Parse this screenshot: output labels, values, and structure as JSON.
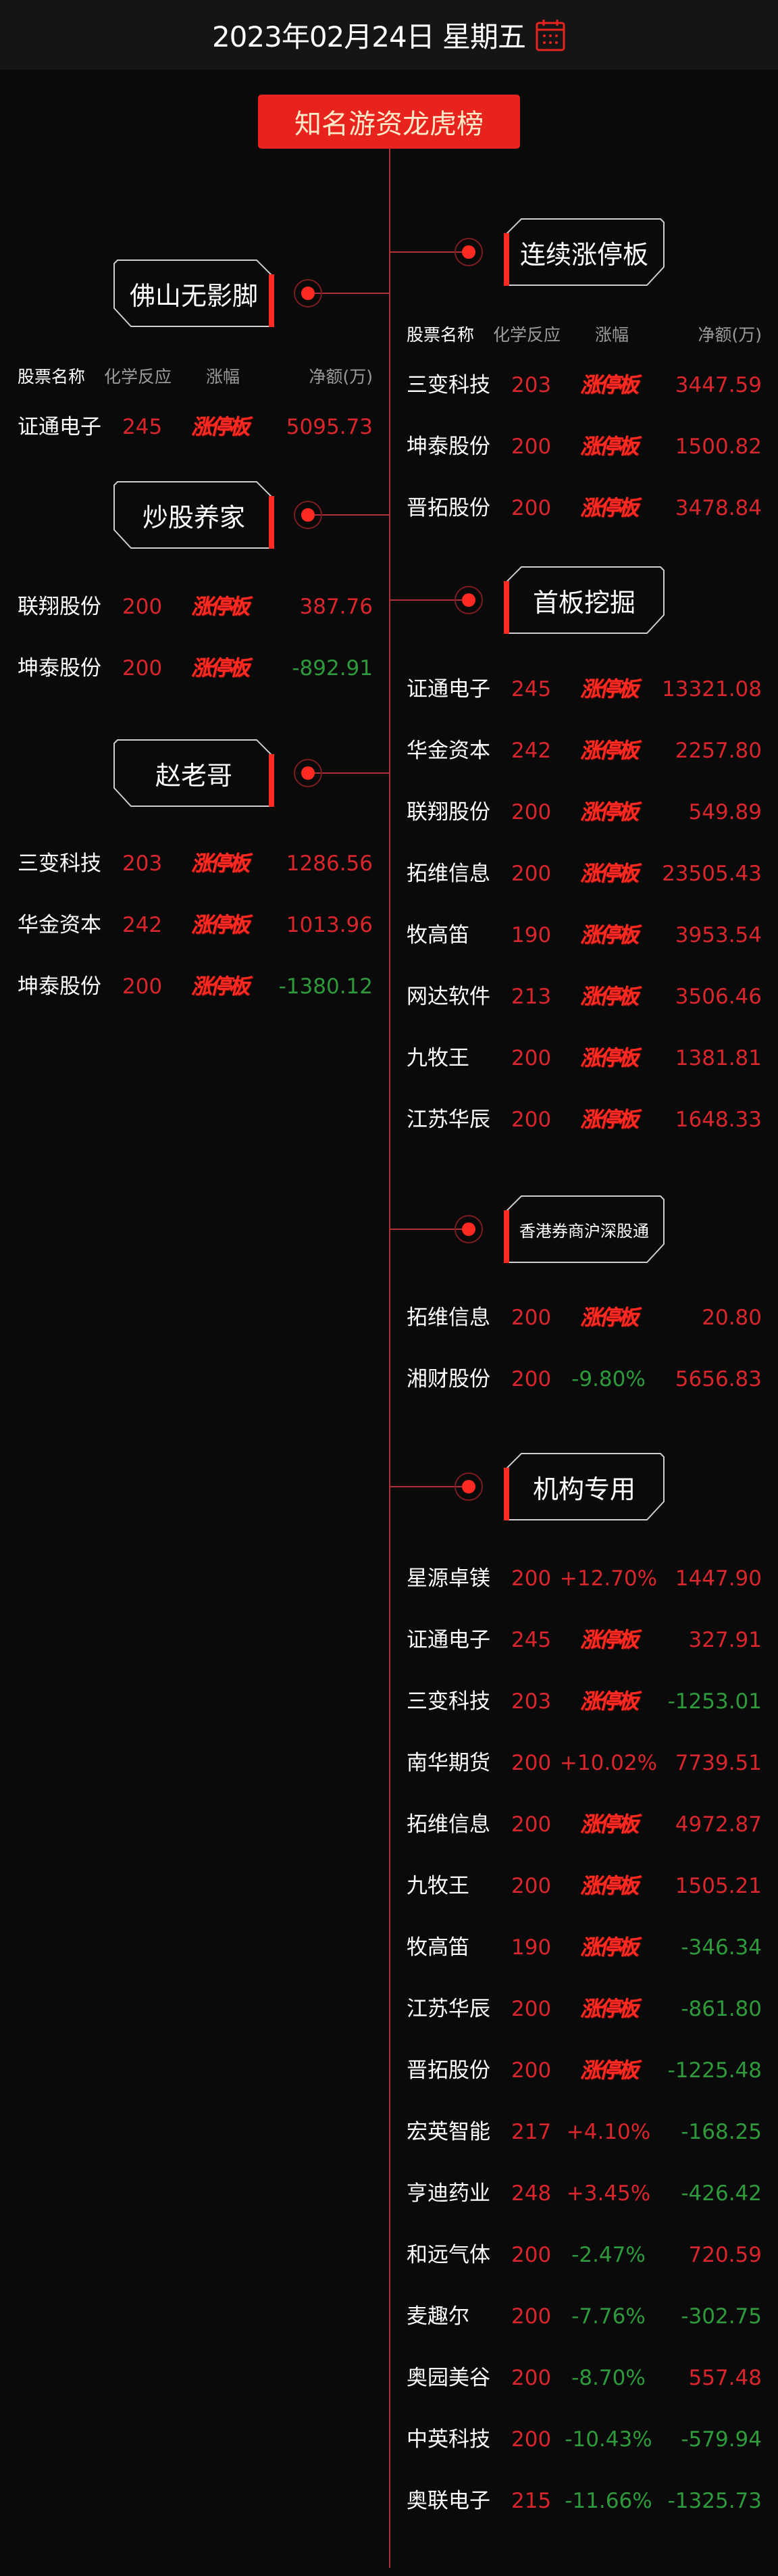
{
  "header": {
    "date": "2023年02月24日 星期五",
    "calendar_icon": "calendar-icon"
  },
  "title": "知名游资龙虎榜",
  "colors": {
    "accent": "#e8231e",
    "up": "#d8262c",
    "down": "#2e9a3c",
    "background": "#0a0a0a"
  },
  "columns": {
    "name": "股票名称",
    "reaction": "化学反应",
    "change": "涨幅",
    "net": "净额(万)"
  },
  "limit_up_label": "涨停板",
  "left_sections": [
    {
      "title": "佛山无影脚",
      "show_header": true,
      "rows": [
        {
          "name": "证通电子",
          "reaction": "245",
          "change": "涨停板",
          "net": "5095.73"
        }
      ]
    },
    {
      "title": "炒股养家",
      "show_header": false,
      "rows": [
        {
          "name": "联翔股份",
          "reaction": "200",
          "change": "涨停板",
          "net": "387.76"
        },
        {
          "name": "坤泰股份",
          "reaction": "200",
          "change": "涨停板",
          "net": "-892.91"
        }
      ]
    },
    {
      "title": "赵老哥",
      "show_header": false,
      "rows": [
        {
          "name": "三变科技",
          "reaction": "203",
          "change": "涨停板",
          "net": "1286.56"
        },
        {
          "name": "华金资本",
          "reaction": "242",
          "change": "涨停板",
          "net": "1013.96"
        },
        {
          "name": "坤泰股份",
          "reaction": "200",
          "change": "涨停板",
          "net": "-1380.12"
        }
      ]
    }
  ],
  "right_sections": [
    {
      "title": "连续涨停板",
      "show_header": true,
      "rows": [
        {
          "name": "三变科技",
          "reaction": "203",
          "change": "涨停板",
          "net": "3447.59"
        },
        {
          "name": "坤泰股份",
          "reaction": "200",
          "change": "涨停板",
          "net": "1500.82"
        },
        {
          "name": "晋拓股份",
          "reaction": "200",
          "change": "涨停板",
          "net": "3478.84"
        }
      ]
    },
    {
      "title": "首板挖掘",
      "show_header": false,
      "rows": [
        {
          "name": "证通电子",
          "reaction": "245",
          "change": "涨停板",
          "net": "13321.08"
        },
        {
          "name": "华金资本",
          "reaction": "242",
          "change": "涨停板",
          "net": "2257.80"
        },
        {
          "name": "联翔股份",
          "reaction": "200",
          "change": "涨停板",
          "net": "549.89"
        },
        {
          "name": "拓维信息",
          "reaction": "200",
          "change": "涨停板",
          "net": "23505.43"
        },
        {
          "name": "牧高笛",
          "reaction": "190",
          "change": "涨停板",
          "net": "3953.54"
        },
        {
          "name": "网达软件",
          "reaction": "213",
          "change": "涨停板",
          "net": "3506.46"
        },
        {
          "name": "九牧王",
          "reaction": "200",
          "change": "涨停板",
          "net": "1381.81"
        },
        {
          "name": "江苏华辰",
          "reaction": "200",
          "change": "涨停板",
          "net": "1648.33"
        }
      ]
    },
    {
      "title": "香港券商沪深股通",
      "small": true,
      "show_header": false,
      "rows": [
        {
          "name": "拓维信息",
          "reaction": "200",
          "change": "涨停板",
          "net": "20.80"
        },
        {
          "name": "湘财股份",
          "reaction": "200",
          "change": "-9.80%",
          "net": "5656.83"
        }
      ]
    },
    {
      "title": "机构专用",
      "show_header": false,
      "rows": [
        {
          "name": "星源卓镁",
          "reaction": "200",
          "change": "+12.70%",
          "net": "1447.90"
        },
        {
          "name": "证通电子",
          "reaction": "245",
          "change": "涨停板",
          "net": "327.91"
        },
        {
          "name": "三变科技",
          "reaction": "203",
          "change": "涨停板",
          "net": "-1253.01"
        },
        {
          "name": "南华期货",
          "reaction": "200",
          "change": "+10.02%",
          "net": "7739.51"
        },
        {
          "name": "拓维信息",
          "reaction": "200",
          "change": "涨停板",
          "net": "4972.87"
        },
        {
          "name": "九牧王",
          "reaction": "200",
          "change": "涨停板",
          "net": "1505.21"
        },
        {
          "name": "牧高笛",
          "reaction": "190",
          "change": "涨停板",
          "net": "-346.34"
        },
        {
          "name": "江苏华辰",
          "reaction": "200",
          "change": "涨停板",
          "net": "-861.80"
        },
        {
          "name": "晋拓股份",
          "reaction": "200",
          "change": "涨停板",
          "net": "-1225.48"
        },
        {
          "name": "宏英智能",
          "reaction": "217",
          "change": "+4.10%",
          "net": "-168.25"
        },
        {
          "name": "亨迪药业",
          "reaction": "248",
          "change": "+3.45%",
          "net": "-426.42"
        },
        {
          "name": "和远气体",
          "reaction": "200",
          "change": "-2.47%",
          "net": "720.59"
        },
        {
          "name": "麦趣尔",
          "reaction": "200",
          "change": "-7.76%",
          "net": "-302.75"
        },
        {
          "name": "奥园美谷",
          "reaction": "200",
          "change": "-8.70%",
          "net": "557.48"
        },
        {
          "name": "中英科技",
          "reaction": "200",
          "change": "-10.43%",
          "net": "-579.94"
        },
        {
          "name": "奥联电子",
          "reaction": "215",
          "change": "-11.66%",
          "net": "-1325.73"
        }
      ]
    }
  ]
}
